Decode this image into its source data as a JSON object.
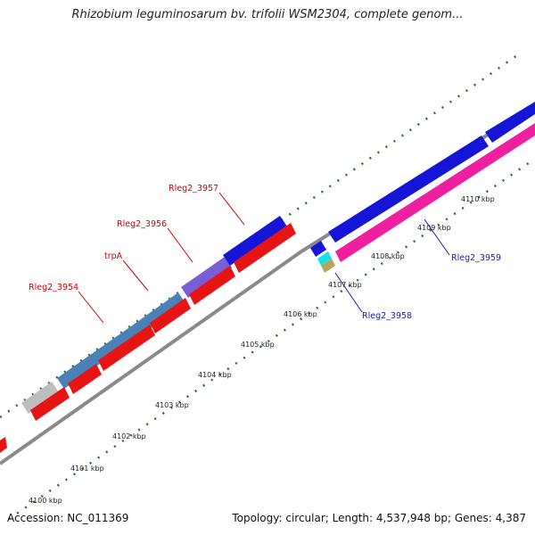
{
  "title": "Rhizobium leguminosarum bv. trifolii WSM2304, complete genom...",
  "footer": {
    "accession": "Accession: NC_011369",
    "stats": "Topology: circular; Length: 4,537,948 bp; Genes: 4,387"
  },
  "colors": {
    "forward_cds": "#1515d8",
    "reverse_cds": "#e81414",
    "label_red": "#cc0000",
    "label_blue": "#1a1aa8",
    "backbone": "#8a8a8a",
    "tick_green": "#1a7a1a"
  },
  "kbp_ticks": [
    "4100 kbp",
    "4101 kbp",
    "4102 kbp",
    "4103 kbp",
    "4104 kbp",
    "4105 kbp",
    "4106 kbp",
    "4107 kbp",
    "4108 kbp",
    "4109 kbp",
    "4110 kbp"
  ],
  "gene_labels": [
    {
      "text": "Rleg2_3954",
      "strand": "reverse"
    },
    {
      "text": "trpA",
      "strand": "reverse"
    },
    {
      "text": "Rleg2_3956",
      "strand": "reverse"
    },
    {
      "text": "Rleg2_3957",
      "strand": "reverse"
    },
    {
      "text": "Rleg2_3958",
      "strand": "forward"
    },
    {
      "text": "Rleg2_3959",
      "strand": "forward"
    }
  ]
}
